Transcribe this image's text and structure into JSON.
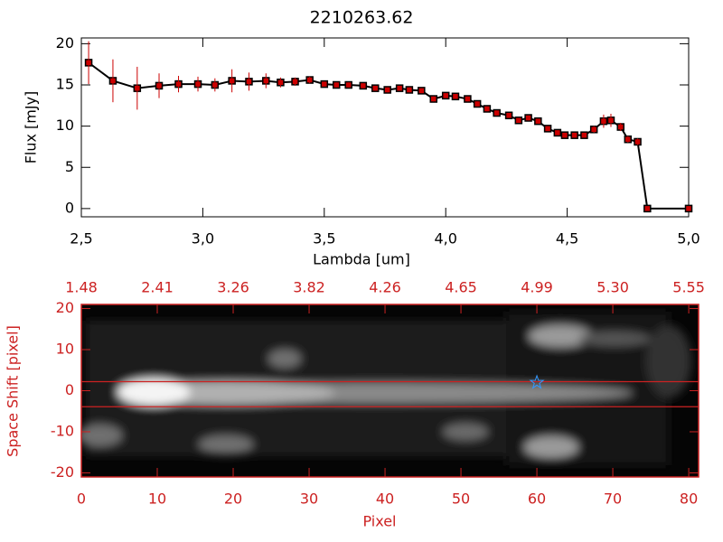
{
  "chart_data": [
    {
      "type": "line",
      "title": "2210263.62",
      "xlabel": "Lambda [um]",
      "ylabel": "Flux [mJy]",
      "x": [
        2.53,
        2.63,
        2.73,
        2.82,
        2.9,
        2.98,
        3.05,
        3.12,
        3.19,
        3.26,
        3.32,
        3.38,
        3.44,
        3.5,
        3.55,
        3.6,
        3.66,
        3.71,
        3.76,
        3.81,
        3.85,
        3.9,
        3.95,
        4.0,
        4.04,
        4.09,
        4.13,
        4.17,
        4.21,
        4.26,
        4.3,
        4.34,
        4.38,
        4.42,
        4.46,
        4.49,
        4.53,
        4.57,
        4.61,
        4.65,
        4.68,
        4.72,
        4.75,
        4.79,
        4.83,
        5.0
      ],
      "values": [
        17.7,
        15.5,
        14.6,
        14.9,
        15.1,
        15.1,
        15.0,
        15.5,
        15.4,
        15.5,
        15.3,
        15.4,
        15.6,
        15.1,
        15.0,
        15.0,
        14.9,
        14.6,
        14.4,
        14.6,
        14.4,
        14.3,
        13.3,
        13.7,
        13.6,
        13.3,
        12.7,
        12.1,
        11.6,
        11.3,
        10.7,
        11.0,
        10.6,
        9.7,
        9.2,
        8.9,
        8.9,
        8.9,
        9.6,
        10.6,
        10.7,
        9.9,
        8.4,
        8.1,
        0,
        0
      ],
      "errors": [
        2.6,
        2.6,
        2.6,
        1.5,
        1.0,
        0.9,
        0.8,
        1.4,
        1.1,
        0.9,
        0.6,
        0.5,
        0.4,
        0.3,
        0.3,
        0.3,
        0.3,
        0.3,
        0.3,
        0.3,
        0.3,
        0.3,
        0.3,
        0.3,
        0.3,
        0.3,
        0.3,
        0.3,
        0.3,
        0.3,
        0.3,
        0.3,
        0.3,
        0.3,
        0.3,
        0.3,
        0.3,
        0.3,
        0.4,
        0.8,
        0.8,
        0.5,
        0.4,
        0.4,
        0,
        0
      ],
      "color": "#cc0000",
      "line_color": "#000000",
      "xlim": [
        2.5,
        5.0
      ],
      "ylim": [
        -1,
        20.7
      ],
      "xticks": [
        {
          "value": 2.5,
          "label": "2,5"
        },
        {
          "value": 3.0,
          "label": "3,0"
        },
        {
          "value": 3.5,
          "label": "3,5"
        },
        {
          "value": 4.0,
          "label": "4,0"
        },
        {
          "value": 4.5,
          "label": "4,5"
        },
        {
          "value": 5.0,
          "label": "5,0"
        }
      ],
      "yticks": [
        0,
        5,
        10,
        15,
        20
      ]
    },
    {
      "type": "image",
      "xlabel": "Pixel",
      "ylabel": "Space Shift [pixel]",
      "color": "#cc2222",
      "xlim": [
        0,
        81.3
      ],
      "ylim": [
        -21,
        21
      ],
      "xticks": [
        0,
        10,
        20,
        30,
        40,
        50,
        60,
        70,
        80
      ],
      "x2ticks": [
        {
          "value": 0,
          "label": "1.48"
        },
        {
          "value": 10,
          "label": "2.41"
        },
        {
          "value": 20,
          "label": "3.26"
        },
        {
          "value": 30,
          "label": "3.82"
        },
        {
          "value": 40,
          "label": "4.26"
        },
        {
          "value": 50,
          "label": "4.65"
        },
        {
          "value": 60,
          "label": "4.99"
        },
        {
          "value": 70,
          "label": "5.30"
        },
        {
          "value": 80,
          "label": "5.55"
        }
      ],
      "yticks": [
        -20,
        -10,
        0,
        10,
        20
      ],
      "extraction_lines": [
        2.2,
        -3.9
      ],
      "marker": {
        "x": 60,
        "y": 2,
        "color": "#3399ff"
      }
    }
  ]
}
